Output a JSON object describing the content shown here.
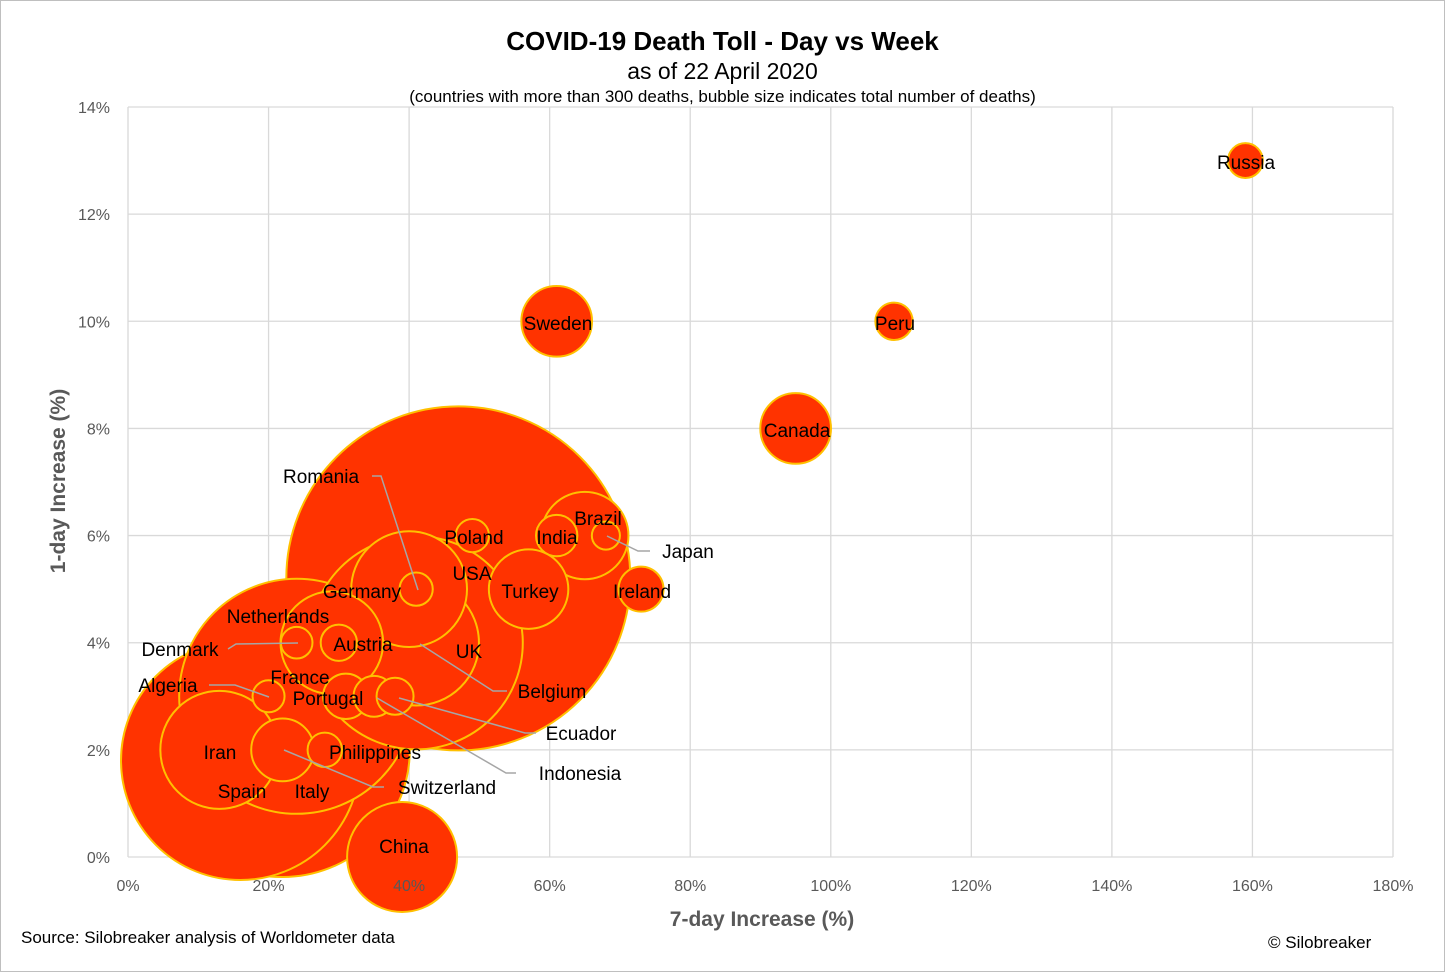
{
  "title": "COVID-19 Death Toll - Day vs Week",
  "subtitle": "as of 22 April 2020",
  "note": "(countries with more than 300 deaths, bubble size indicates total number of deaths)",
  "source": "Source: Silobreaker analysis of Worldometer data",
  "copyright": "© Silobreaker",
  "colors": {
    "bubble_fill": "#ff3300",
    "bubble_edge": "#ffc000",
    "grid": "#d9d9d9",
    "leader": "#a6a6a6",
    "axis_text": "#595959"
  },
  "chart_data": {
    "type": "scatter",
    "xlabel": "7-day Increase (%)",
    "ylabel": "1-day Increase (%)",
    "xlim": [
      0,
      180
    ],
    "ylim": [
      0,
      14
    ],
    "xticks": [
      "0%",
      "20%",
      "40%",
      "60%",
      "80%",
      "100%",
      "120%",
      "140%",
      "160%",
      "180%"
    ],
    "yticks": [
      "0%",
      "2%",
      "4%",
      "6%",
      "8%",
      "10%",
      "12%",
      "14%"
    ],
    "grid": true,
    "bubble_size": "total number of deaths",
    "points": [
      {
        "name": "USA",
        "x": 47,
        "y": 5.2,
        "deaths": 45000
      },
      {
        "name": "Spain",
        "x": 16,
        "y": 1.8,
        "deaths": 21700
      },
      {
        "name": "Italy",
        "x": 22,
        "y": 2.0,
        "deaths": 24600
      },
      {
        "name": "France",
        "x": 24,
        "y": 3.0,
        "deaths": 21000
      },
      {
        "name": "UK",
        "x": 41,
        "y": 4.0,
        "deaths": 17300
      },
      {
        "name": "Belgium",
        "x": 41,
        "y": 4.0,
        "deaths": 6000
      },
      {
        "name": "Iran",
        "x": 13,
        "y": 2.0,
        "deaths": 5300
      },
      {
        "name": "Germany",
        "x": 40,
        "y": 5.0,
        "deaths": 5100
      },
      {
        "name": "China",
        "x": 39,
        "y": 0.0,
        "deaths": 4600
      },
      {
        "name": "Netherlands",
        "x": 29,
        "y": 4.0,
        "deaths": 4000
      },
      {
        "name": "Brazil",
        "x": 65,
        "y": 6.0,
        "deaths": 2900
      },
      {
        "name": "Turkey",
        "x": 57,
        "y": 5.0,
        "deaths": 2400
      },
      {
        "name": "Sweden",
        "x": 61,
        "y": 10.0,
        "deaths": 1900
      },
      {
        "name": "Canada",
        "x": 95,
        "y": 8.0,
        "deaths": 1900
      },
      {
        "name": "Switzerland",
        "x": 22,
        "y": 2.0,
        "deaths": 1500
      },
      {
        "name": "Ireland",
        "x": 73,
        "y": 5.0,
        "deaths": 770
      },
      {
        "name": "Portugal",
        "x": 31,
        "y": 3.0,
        "deaths": 785
      },
      {
        "name": "Ecuador",
        "x": 38,
        "y": 3.0,
        "deaths": 520
      },
      {
        "name": "India",
        "x": 61,
        "y": 6.0,
        "deaths": 650
      },
      {
        "name": "Indonesia",
        "x": 35,
        "y": 3.0,
        "deaths": 635
      },
      {
        "name": "Peru",
        "x": 109,
        "y": 10.0,
        "deaths": 530
      },
      {
        "name": "Russia",
        "x": 159,
        "y": 13.0,
        "deaths": 460
      },
      {
        "name": "Austria",
        "x": 30,
        "y": 4.0,
        "deaths": 500
      },
      {
        "name": "Romania",
        "x": 41,
        "y": 5.0,
        "deaths": 420
      },
      {
        "name": "Poland",
        "x": 49,
        "y": 6.0,
        "deaths": 420
      },
      {
        "name": "Denmark",
        "x": 24,
        "y": 4.0,
        "deaths": 380
      },
      {
        "name": "Philippines",
        "x": 28,
        "y": 2.0,
        "deaths": 450
      },
      {
        "name": "Algeria",
        "x": 20,
        "y": 3.0,
        "deaths": 390
      },
      {
        "name": "Japan",
        "x": 68,
        "y": 6.0,
        "deaths": 300
      }
    ]
  }
}
